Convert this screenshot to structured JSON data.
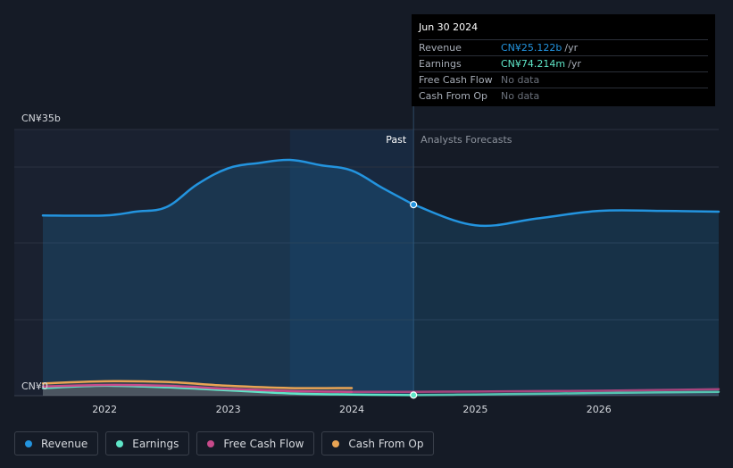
{
  "chart_data": {
    "type": "line",
    "title": "",
    "ylabel": "",
    "y_top_label": "CN¥35b",
    "y_bottom_label": "CN¥0",
    "ylim": [
      0,
      35
    ],
    "xlim": [
      2021.5,
      2026.97
    ],
    "x_ticks": [
      2022,
      2023,
      2024,
      2025,
      2026
    ],
    "x_tick_labels": [
      "2022",
      "2023",
      "2024",
      "2025",
      "2026"
    ],
    "past_label": "Past",
    "forecast_label": "Analysts Forecasts",
    "divider_x": 2024.5,
    "highlight_start_x": 2023.5,
    "series": [
      {
        "name": "Revenue",
        "color": "#2394df",
        "x": [
          2021.5,
          2022.0,
          2022.25,
          2022.5,
          2022.75,
          2023.0,
          2023.25,
          2023.5,
          2023.75,
          2024.0,
          2024.25,
          2024.5
        ],
        "values": [
          23.7,
          23.7,
          24.2,
          24.8,
          27.8,
          29.9,
          30.6,
          31.0,
          30.3,
          29.6,
          27.3,
          25.122
        ],
        "forecast_x": [
          2024.5,
          2025.0,
          2025.5,
          2026.0,
          2026.5,
          2026.97
        ],
        "forecast_values": [
          25.122,
          22.4,
          23.3,
          24.3,
          24.3,
          24.2
        ]
      },
      {
        "name": "Earnings",
        "color": "#5fe6c8",
        "x": [
          2021.5,
          2022.0,
          2022.5,
          2023.0,
          2023.5,
          2024.0,
          2024.5
        ],
        "values": [
          1.0,
          1.3,
          1.1,
          0.7,
          0.3,
          0.15,
          0.074
        ],
        "forecast_x": [
          2024.5,
          2025.0,
          2025.5,
          2026.0,
          2026.97
        ],
        "forecast_values": [
          0.074,
          0.15,
          0.25,
          0.35,
          0.5
        ]
      },
      {
        "name": "Free Cash Flow",
        "color": "#c74a8a",
        "x": [
          2021.5,
          2022.0,
          2022.5,
          2023.0,
          2023.5,
          2024.0
        ],
        "values": [
          1.2,
          1.4,
          1.3,
          0.9,
          0.6,
          0.5
        ],
        "forecast_x": [
          2024.0,
          2024.5,
          2025.0,
          2025.5,
          2026.0,
          2026.97
        ],
        "forecast_values": [
          0.5,
          0.5,
          0.55,
          0.6,
          0.65,
          0.85
        ]
      },
      {
        "name": "Cash From Op",
        "color": "#e9a454",
        "x": [
          2021.5,
          2022.0,
          2022.5,
          2023.0,
          2023.5,
          2024.0
        ],
        "values": [
          1.6,
          1.9,
          1.8,
          1.3,
          1.0,
          1.0
        ],
        "forecast_x": [],
        "forecast_values": []
      }
    ]
  },
  "tooltip": {
    "date": "Jun 30 2024",
    "rows": [
      {
        "label": "Revenue",
        "value": "CN¥25.122b",
        "unit": "/yr",
        "color": "#2394df"
      },
      {
        "label": "Earnings",
        "value": "CN¥74.214m",
        "unit": "/yr",
        "color": "#5fe6c8"
      },
      {
        "label": "Free Cash Flow",
        "value": "No data",
        "unit": "",
        "color": "#6b717b"
      },
      {
        "label": "Cash From Op",
        "value": "No data",
        "unit": "",
        "color": "#6b717b"
      }
    ]
  },
  "legend": {
    "items": [
      {
        "label": "Revenue",
        "color": "#2394df"
      },
      {
        "label": "Earnings",
        "color": "#5fe6c8"
      },
      {
        "label": "Free Cash Flow",
        "color": "#c74a8a"
      },
      {
        "label": "Cash From Op",
        "color": "#e9a454"
      }
    ]
  }
}
